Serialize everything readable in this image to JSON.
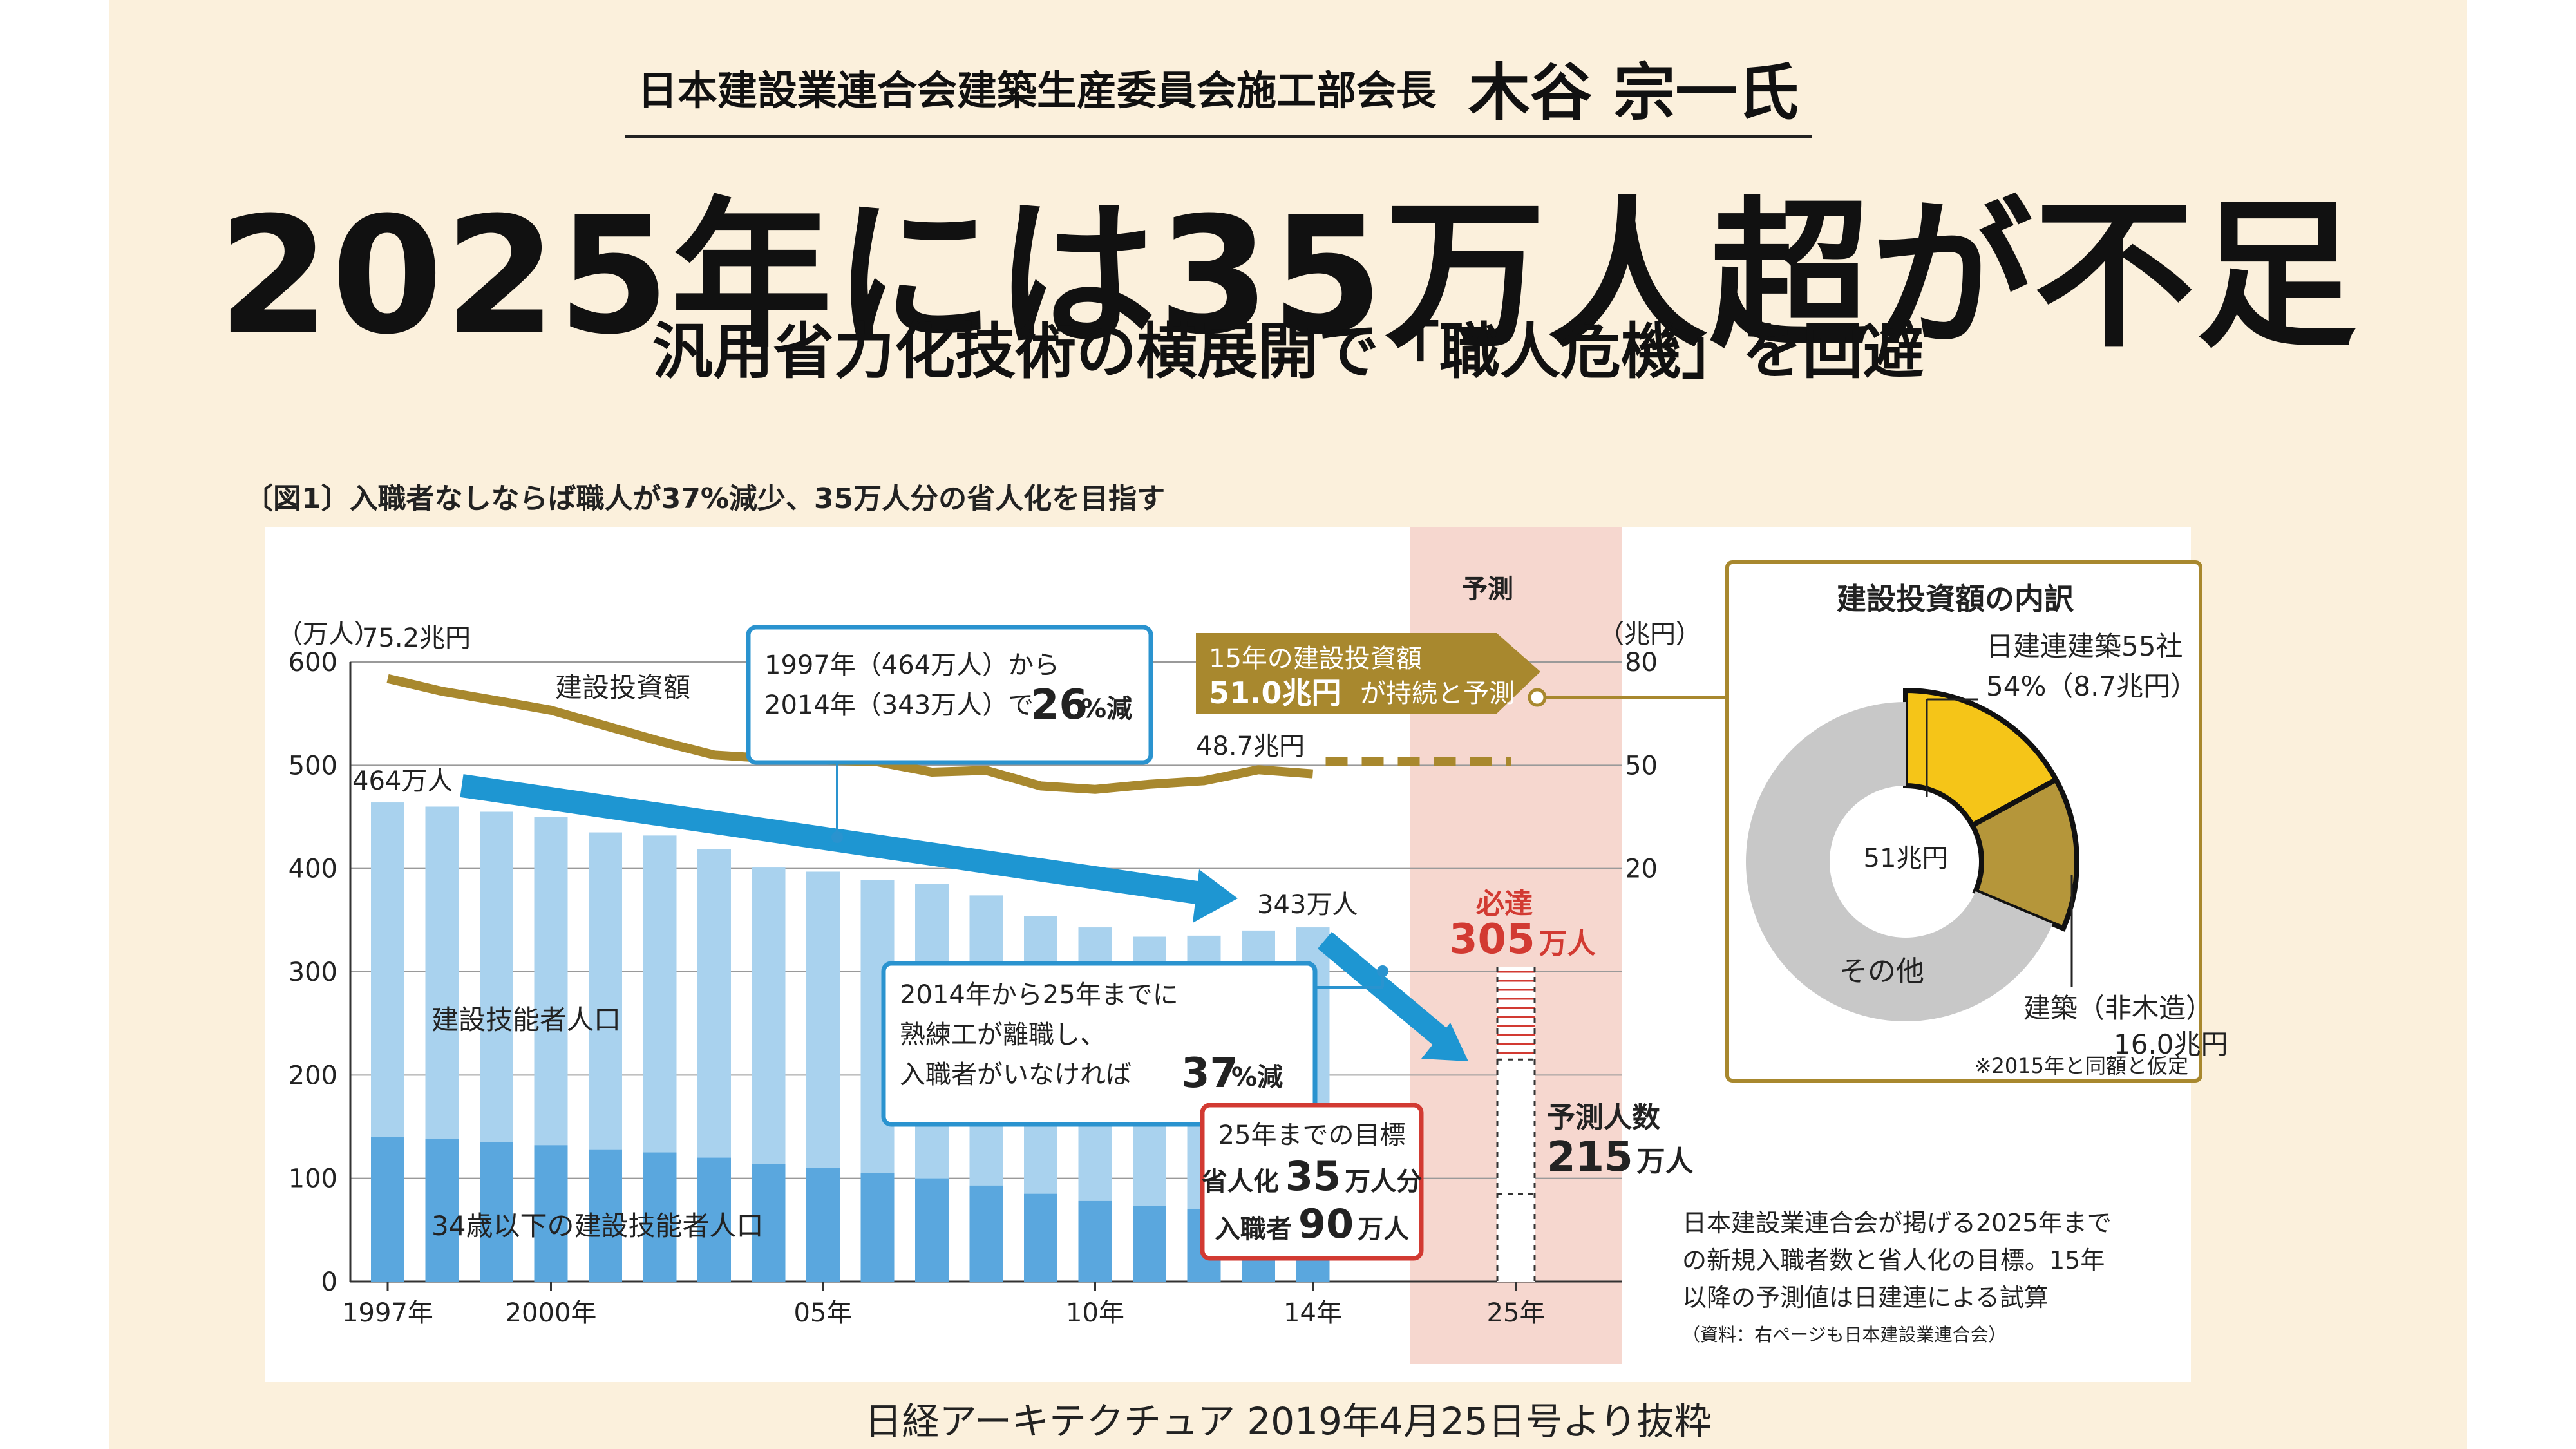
{
  "header": {
    "org": "日本建設業連合会建築生産委員会施工部会長",
    "name": "木谷 宗一氏",
    "headline": "2025年には35万人超が不足",
    "subhead": "汎用省力化技術の横展開で「職人危機」を回避"
  },
  "figure_title": "〔図1〕入職者なしならば職人が37%減少、35万人分の省人化を目指す",
  "credit": "日経アーキテクチュア 2019年4月25日号より抜粋",
  "colors": {
    "bar_total": "#a9d2ee",
    "bar_young": "#5aa7de",
    "investment_line": "#a8882e",
    "arrow": "#1e96d2",
    "forecast_band": "#f6d7cf",
    "callout_blue": "#2a93cf",
    "callout_red": "#d23a32",
    "gold_box": "#a8882e",
    "pie_yellow": "#f5c518",
    "pie_gold": "#b5963a",
    "pie_gray": "#c8c8c8"
  },
  "chart_data": [
    {
      "type": "bar",
      "title": "",
      "ylabel_left": "（万人）",
      "ylabel_right": "（兆円）",
      "left_ticks": [
        "600",
        "500",
        "400",
        "300",
        "200",
        "100",
        "0"
      ],
      "right_ticks": [
        "80",
        "50",
        "20"
      ],
      "x": [
        1997,
        1998,
        1999,
        2000,
        2001,
        2002,
        2003,
        2004,
        2005,
        2006,
        2007,
        2008,
        2009,
        2010,
        2011,
        2012,
        2013,
        2014
      ],
      "x_labels": [
        {
          "year": 1997,
          "label": "1997年"
        },
        {
          "year": 2000,
          "label": "2000年"
        },
        {
          "year": 2005,
          "label": "05年"
        },
        {
          "year": 2010,
          "label": "10年"
        },
        {
          "year": 2014,
          "label": "14年"
        },
        {
          "year": 2025,
          "label": "25年"
        }
      ],
      "series": [
        {
          "name": "建設技能者人口",
          "values": [
            464,
            460,
            455,
            450,
            435,
            432,
            419,
            401,
            397,
            389,
            385,
            374,
            354,
            343,
            334,
            335,
            340,
            343
          ]
        },
        {
          "name": "34歳以下の建設技能者人口",
          "values": [
            140,
            138,
            135,
            132,
            128,
            125,
            120,
            114,
            110,
            105,
            100,
            93,
            85,
            78,
            73,
            70,
            68,
            70
          ]
        },
        {
          "name": "建設投資額",
          "unit": "兆円",
          "values": [
            75.2,
            71.5,
            68.8,
            66.0,
            61.5,
            57.0,
            53.0,
            52.0,
            51.5,
            51.0,
            48.0,
            48.5,
            44.0,
            43.0,
            44.5,
            45.5,
            48.7,
            47.5
          ]
        }
      ],
      "forecast": {
        "band_label": "予測",
        "year": 2025,
        "investment_line_trillion_yen": 51.0,
        "required_workers": 305,
        "forecast_workers": 215
      },
      "annotations": {
        "start_investment": "75.2兆円",
        "series_investment_label": "建設投資額",
        "investment_2013": "48.7兆円",
        "start_workers": "464万人",
        "end_workers": "343万人",
        "series_total_label": "建設技能者人口",
        "series_young_label": "34歳以下の建設技能者人口",
        "callout1_line1": "1997年（464万人）から",
        "callout1_line2": "2014年（343万人）で",
        "callout1_big": "26",
        "callout1_suffix": "%減",
        "callout2_line1": "2014年から25年までに",
        "callout2_line2": "熟練工が離職し、",
        "callout2_line3": "入職者がいなければ",
        "callout2_big": "37",
        "callout2_suffix": "%減",
        "gold_line1": "15年の建設投資額",
        "gold_big": "51.0兆円",
        "gold_suffix": "が持続と予測",
        "required_label": "必達",
        "required_big": "305",
        "required_unit": "万人",
        "forecast_label": "予測人数",
        "forecast_big": "215",
        "forecast_unit": "万人",
        "target_title": "25年までの目標",
        "target_row1_label": "省人化",
        "target_row1_big": "35",
        "target_row1_unit": "万人分",
        "target_row2_label": "入職者",
        "target_row2_big": "90",
        "target_row2_unit": "万人"
      },
      "ylim_left": [
        0,
        600
      ]
    },
    {
      "type": "pie",
      "title": "建設投資額の内訳",
      "center_label": "51兆円",
      "slices": [
        {
          "name": "日建連建築55社",
          "value": 8.7,
          "percent_label": "54%（8.7兆円）"
        },
        {
          "name": "建築（非木造）",
          "value": 7.3,
          "total_label": "16.0兆円"
        },
        {
          "name": "その他",
          "value": 35.0
        }
      ],
      "footnote": "※2015年と同額と仮定"
    }
  ],
  "note": {
    "line1": "日本建設業連合会が掲げる2025年まで",
    "line2": "の新規入職者数と省人化の目標。15年",
    "line3": "以降の予測値は日建連による試算",
    "source": "（資料：右ページも日本建設業連合会）"
  }
}
